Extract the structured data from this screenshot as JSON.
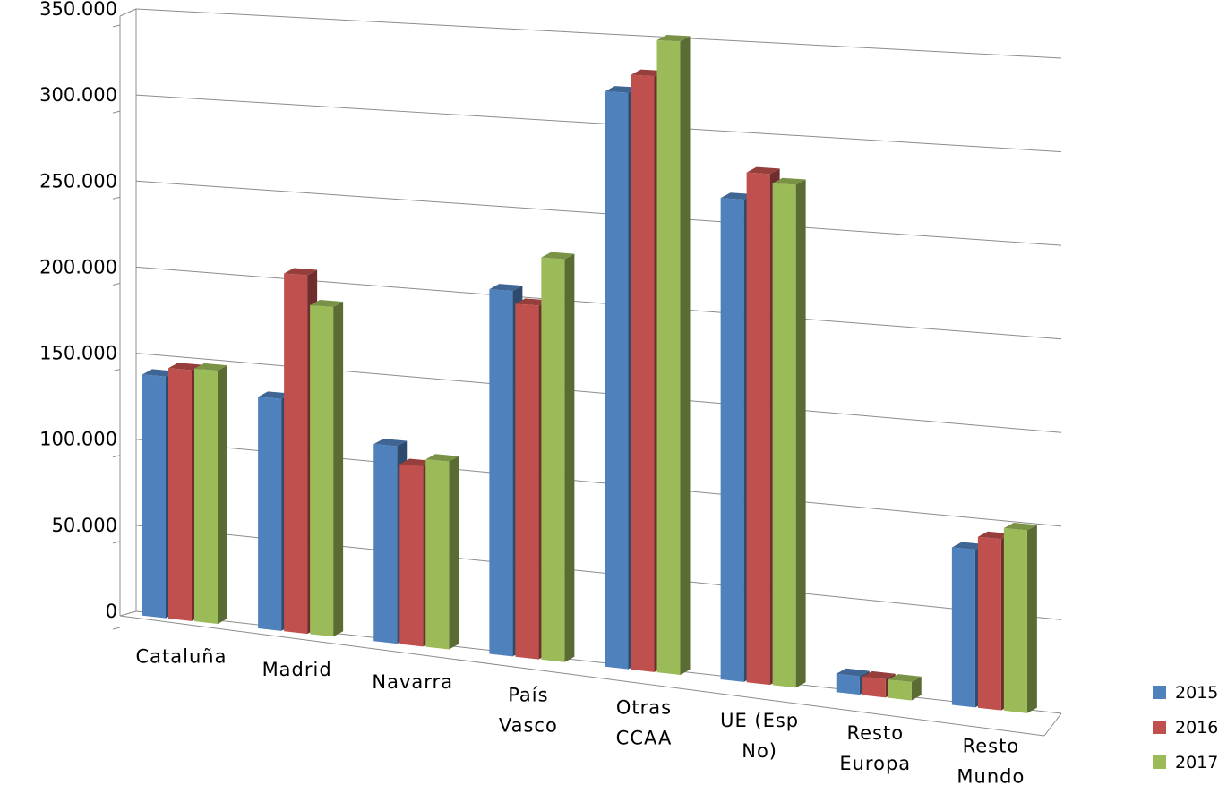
{
  "chart_data": {
    "type": "bar",
    "categories": [
      [
        "Cataluña"
      ],
      [
        "Madrid"
      ],
      [
        "Navarra"
      ],
      [
        "País",
        "Vasco"
      ],
      [
        "Otras",
        "CCAA"
      ],
      [
        "UE (Esp",
        "No)"
      ],
      [
        "Resto",
        "Europa"
      ],
      [
        "Resto",
        "Mundo"
      ]
    ],
    "series": [
      {
        "name": "2015",
        "color": "#4F81BD",
        "values": [
          140000,
          133000,
          112000,
          205000,
          320000,
          265000,
          10000,
          85000
        ]
      },
      {
        "name": "2016",
        "color": "#C0504D",
        "values": [
          145000,
          205000,
          102000,
          198000,
          330000,
          280000,
          10000,
          92000
        ]
      },
      {
        "name": "2017",
        "color": "#9BBB59",
        "values": [
          146000,
          188000,
          106000,
          225000,
          350000,
          275000,
          10000,
          98000
        ]
      }
    ],
    "ytick_labels": [
      "0",
      "50.000",
      "100.000",
      "150.000",
      "200.000",
      "250.000",
      "300.000",
      "350.000"
    ],
    "ytick_values": [
      0,
      50000,
      100000,
      150000,
      200000,
      250000,
      300000,
      350000
    ],
    "ylim": [
      0,
      350000
    ],
    "grid": true,
    "legend": "right",
    "style": "3d-clustered-column"
  }
}
